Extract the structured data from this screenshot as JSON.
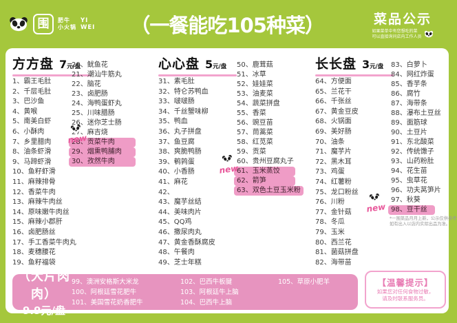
{
  "colors": {
    "green": "#a5c73c",
    "pink_highlight": "#ef9cc6",
    "pink_box": "#e794bf",
    "pink_rule": "#f2a3cd",
    "pink_text": "#e87bb3",
    "item_text": "#3c3c3c"
  },
  "header": {
    "logo": {
      "mark": "围",
      "brand_line1": "肥牛",
      "brand_line2": "小火锅",
      "pinyin_line1": "YI",
      "pinyin_line2": "WEI"
    },
    "title": "（一餐能吃105种菜）",
    "subtitle": "菜品公示",
    "note_line1": "如果菜单中有您想吃的菜",
    "note_line2": "可以直接询问店内工作人员"
  },
  "new_badge_label": "new",
  "groups": [
    {
      "title": "方方盘",
      "price_num": "7",
      "price_unit": "元/盘",
      "col_a": [
        {
          "t": "1、霸王毛肚"
        },
        {
          "t": "2、千层毛肚"
        },
        {
          "t": "3、巴沙鱼"
        },
        {
          "t": "4、黄喉"
        },
        {
          "t": "5、南美白虾"
        },
        {
          "t": "6、小酥肉"
        },
        {
          "t": "7、乡里腊肉"
        },
        {
          "t": "8、油条虾滑"
        },
        {
          "t": "9、马蹄虾滑"
        },
        {
          "t": "10、鱼籽虾滑"
        },
        {
          "t": "11、麻辣排骨"
        },
        {
          "t": "12、香菜牛肉"
        },
        {
          "t": "13、麻辣牛肉丝"
        },
        {
          "t": "14、原味嫩牛肉丝"
        },
        {
          "t": "15、麻辣小郡肝"
        },
        {
          "t": "16、卤肥肠丝"
        },
        {
          "t": "17、手工香菜牛肉丸"
        },
        {
          "t": "18、麦穗腰花"
        },
        {
          "t": "19、鱼籽福袋"
        }
      ],
      "col_b": [
        {
          "t": "20、鱿鱼花"
        },
        {
          "t": "21、潮汕牛筋丸"
        },
        {
          "t": "22、脑花"
        },
        {
          "t": "23、卤肥肠"
        },
        {
          "t": "24、海鸭蛋虾丸"
        },
        {
          "t": "25、川味腊肠"
        },
        {
          "t": "26、迷你芝士肠"
        },
        {
          "t": "27、麻吉烧"
        },
        {
          "t": "28、贡菜牛肉",
          "h": true
        },
        {
          "t": "29、烟熏鸭脯肉",
          "h": true
        },
        {
          "t": "30、孜然牛肉",
          "h": true
        }
      ]
    },
    {
      "title": "心心盘",
      "price_num": "5",
      "price_unit": "元/盘",
      "col_a": [
        {
          "t": "31、素毛肚"
        },
        {
          "t": "32、特仑苏鸭血"
        },
        {
          "t": "33、啵啵肠"
        },
        {
          "t": "34、千丝蟹味柳"
        },
        {
          "t": "35、鸭血"
        },
        {
          "t": "36、丸子拼盘"
        },
        {
          "t": "37、鱼豆腐"
        },
        {
          "t": "38、爽脆鸭肠"
        },
        {
          "t": "39、鹌鹑蛋"
        },
        {
          "t": "40、小香肠"
        },
        {
          "t": "41、麻花"
        },
        {
          "t": "42、"
        },
        {
          "t": "43、魔芋丝结"
        },
        {
          "t": "44、美味肉片"
        },
        {
          "t": "45、QQ鸡"
        },
        {
          "t": "46、撒尿肉丸"
        },
        {
          "t": "47、黄金香酥腐皮"
        },
        {
          "t": "48、午餐肉"
        },
        {
          "t": "49、芝士年糕"
        }
      ],
      "col_b": [
        {
          "t": "50、鹿茸菇"
        },
        {
          "t": "51、冰草"
        },
        {
          "t": "52、娃娃菜"
        },
        {
          "t": "53、油麦菜"
        },
        {
          "t": "54、蔬菜拼盘"
        },
        {
          "t": "55、香菜"
        },
        {
          "t": "56、豌豆苗"
        },
        {
          "t": "57、茼蒿菜"
        },
        {
          "t": "58、红苋菜"
        },
        {
          "t": "59、贡菜"
        },
        {
          "t": "60、贵州豆腐丸子"
        },
        {
          "t": "61、玉米蒸饺",
          "h": true
        },
        {
          "t": "62、箭笋",
          "h": true
        },
        {
          "t": "63、双色土豆玉米粉",
          "h": true
        }
      ]
    },
    {
      "title": "长长盘",
      "price_num": "3",
      "price_unit": "元/盘",
      "col_a": [
        {
          "t": "64、方便面"
        },
        {
          "t": "65、兰花干"
        },
        {
          "t": "66、千张丝"
        },
        {
          "t": "67、黄金豆皮"
        },
        {
          "t": "68、火锅面"
        },
        {
          "t": "69、美好肠"
        },
        {
          "t": "70、油条"
        },
        {
          "t": "71、魔芋片"
        },
        {
          "t": "72、黑木耳"
        },
        {
          "t": "73、鸡蛋"
        },
        {
          "t": "74、红薯粉"
        },
        {
          "t": "75、龙口粉丝"
        },
        {
          "t": "76、川粉"
        },
        {
          "t": "77、金针菇"
        },
        {
          "t": "78、冬瓜"
        },
        {
          "t": "79、玉米"
        },
        {
          "t": "80、西兰花"
        },
        {
          "t": "81、菌菇拼盘"
        },
        {
          "t": "82、海带苗"
        }
      ],
      "col_b": [
        {
          "t": "83、白萝卜"
        },
        {
          "t": "84、网红炸蛋"
        },
        {
          "t": "85、香芋条"
        },
        {
          "t": "86、腐竹"
        },
        {
          "t": "87、海带条"
        },
        {
          "t": "88、瀑布土豆丝"
        },
        {
          "t": "89、面筋球"
        },
        {
          "t": "90、土豆片"
        },
        {
          "t": "91、东北酸菜"
        },
        {
          "t": "92、传统馓子"
        },
        {
          "t": "93、山药粉肚"
        },
        {
          "t": "94、花生苗"
        },
        {
          "t": "95、虫草花"
        },
        {
          "t": "96、功夫莴笋片"
        },
        {
          "t": "97、秋葵"
        },
        {
          "t": "98、豆干丝",
          "h": true
        }
      ]
    }
  ],
  "fine_print": {
    "line1": "*一围菜品月月上新，公示仅供参考",
    "line2": "如有出入以店内实际出品为准。"
  },
  "footer": {
    "meat": {
      "title": "（大片肉肉）",
      "price": "9.9元/盘",
      "col_1": [
        {
          "t": "99、澳洲安格斯大米龙"
        },
        {
          "t": "100、阿根廷雪花肥牛"
        },
        {
          "t": "101、美国雪花奶香肥牛"
        }
      ],
      "col_2": [
        {
          "t": "102、巴西牛板腱"
        },
        {
          "t": "103、阿根廷牛上脑"
        },
        {
          "t": "104、巴西牛上脑"
        }
      ],
      "col_3": [
        {
          "t": "105、草原小肥羊"
        }
      ]
    },
    "tips": {
      "title": "【温馨提示】",
      "line1": "如果您对任何食物过敏，",
      "line2": "请及时联系服务员。"
    }
  }
}
